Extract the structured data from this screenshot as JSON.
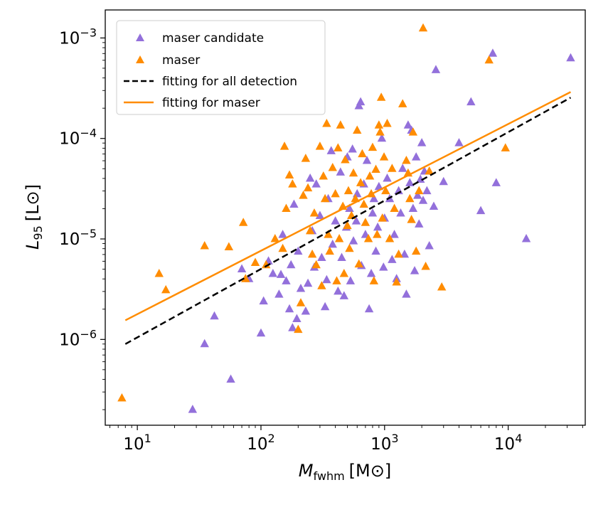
{
  "chart_data": {
    "type": "scatter",
    "title": "",
    "xlabel": {
      "main": "M",
      "sub": "fwhm",
      "unit": "[M⊙]"
    },
    "ylabel": {
      "main": "L",
      "sub": "95",
      "unit": "[L⊙]"
    },
    "xscale": "log",
    "yscale": "log",
    "xlim": [
      5.5,
      42000
    ],
    "ylim": [
      1.4e-07,
      0.0019
    ],
    "xticks": [
      {
        "value": 10,
        "base": "10",
        "exp": "1"
      },
      {
        "value": 100,
        "base": "10",
        "exp": "2"
      },
      {
        "value": 1000,
        "base": "10",
        "exp": "3"
      },
      {
        "value": 10000,
        "base": "10",
        "exp": "4"
      }
    ],
    "yticks": [
      {
        "value": 1e-06,
        "base": "10",
        "exp": "−6"
      },
      {
        "value": 1e-05,
        "base": "10",
        "exp": "−5"
      },
      {
        "value": 0.0001,
        "base": "10",
        "exp": "−4"
      },
      {
        "value": 0.001,
        "base": "10",
        "exp": "−3"
      }
    ],
    "grid": false,
    "legend": {
      "position": "top-left",
      "entries": [
        {
          "label": "maser candidate",
          "kind": "triangle",
          "color": "#9370DB"
        },
        {
          "label": "maser",
          "kind": "triangle",
          "color": "#FF8C00"
        },
        {
          "label": "fitting for all detection",
          "kind": "dashed-line",
          "color": "#000000"
        },
        {
          "label": "fitting for maser",
          "kind": "solid-line",
          "color": "#FF8C00"
        }
      ]
    },
    "series": [
      {
        "name": "maser candidate",
        "color": "#9370DB",
        "marker": "triangle",
        "points": [
          [
            28,
            2e-07
          ],
          [
            35,
            9e-07
          ],
          [
            42,
            1.7e-06
          ],
          [
            57,
            4e-07
          ],
          [
            70,
            5e-06
          ],
          [
            80,
            4e-06
          ],
          [
            100,
            1.15e-06
          ],
          [
            105,
            2.4e-06
          ],
          [
            115,
            6e-06
          ],
          [
            125,
            4.5e-06
          ],
          [
            140,
            2.8e-06
          ],
          [
            145,
            4.4e-06
          ],
          [
            150,
            1.1e-05
          ],
          [
            160,
            3.8e-06
          ],
          [
            170,
            2e-06
          ],
          [
            175,
            5.5e-06
          ],
          [
            180,
            1.3e-06
          ],
          [
            185,
            2.2e-05
          ],
          [
            195,
            1.6e-06
          ],
          [
            200,
            7.5e-06
          ],
          [
            210,
            3.2e-06
          ],
          [
            230,
            1.9e-06
          ],
          [
            240,
            3.6e-06
          ],
          [
            250,
            4e-05
          ],
          [
            260,
            1.2e-05
          ],
          [
            270,
            5.2e-06
          ],
          [
            280,
            3.5e-05
          ],
          [
            300,
            1.7e-05
          ],
          [
            310,
            6.5e-06
          ],
          [
            330,
            2.1e-06
          ],
          [
            340,
            3.9e-06
          ],
          [
            350,
            2.5e-05
          ],
          [
            370,
            7.5e-05
          ],
          [
            380,
            8.8e-06
          ],
          [
            400,
            1.5e-05
          ],
          [
            420,
            3e-06
          ],
          [
            440,
            4.6e-05
          ],
          [
            450,
            6.5e-06
          ],
          [
            470,
            2.7e-06
          ],
          [
            490,
            1.3e-05
          ],
          [
            500,
            6.5e-05
          ],
          [
            520,
            2e-05
          ],
          [
            530,
            3.8e-06
          ],
          [
            550,
            7.8e-05
          ],
          [
            560,
            9.5e-06
          ],
          [
            590,
            1.5e-05
          ],
          [
            600,
            2.8e-05
          ],
          [
            620,
            0.00021
          ],
          [
            640,
            0.00023
          ],
          [
            650,
            5.4e-06
          ],
          [
            680,
            3.5e-05
          ],
          [
            700,
            1.1e-05
          ],
          [
            720,
            6e-05
          ],
          [
            750,
            2e-06
          ],
          [
            780,
            4.5e-06
          ],
          [
            800,
            1.8e-05
          ],
          [
            820,
            2.5e-05
          ],
          [
            850,
            7.5e-06
          ],
          [
            880,
            1.3e-05
          ],
          [
            900,
            3.3e-05
          ],
          [
            950,
            0.0001
          ],
          [
            980,
            5.2e-06
          ],
          [
            1000,
            1.6e-05
          ],
          [
            1050,
            4e-05
          ],
          [
            1100,
            2.5e-05
          ],
          [
            1150,
            6.2e-06
          ],
          [
            1200,
            1.1e-05
          ],
          [
            1250,
            4e-06
          ],
          [
            1300,
            3e-05
          ],
          [
            1350,
            1.8e-05
          ],
          [
            1400,
            5e-05
          ],
          [
            1450,
            7e-06
          ],
          [
            1500,
            2.8e-06
          ],
          [
            1550,
            0.000135
          ],
          [
            1600,
            3.6e-05
          ],
          [
            1650,
            0.00012
          ],
          [
            1700,
            2e-05
          ],
          [
            1750,
            4.8e-06
          ],
          [
            1800,
            6.5e-05
          ],
          [
            1850,
            2.7e-05
          ],
          [
            1900,
            1.4e-05
          ],
          [
            1950,
            3.9e-05
          ],
          [
            2000,
            9e-05
          ],
          [
            2050,
            2.4e-05
          ],
          [
            2100,
            4.7e-05
          ],
          [
            2200,
            3e-05
          ],
          [
            2300,
            8.5e-06
          ],
          [
            2500,
            2.1e-05
          ],
          [
            2600,
            0.00048
          ],
          [
            3000,
            3.7e-05
          ],
          [
            4000,
            9e-05
          ],
          [
            5000,
            0.00023
          ],
          [
            6000,
            1.9e-05
          ],
          [
            7500,
            0.0007
          ],
          [
            8000,
            3.6e-05
          ],
          [
            14000,
            1e-05
          ],
          [
            32000,
            0.00063
          ]
        ]
      },
      {
        "name": "maser",
        "color": "#FF8C00",
        "marker": "triangle",
        "points": [
          [
            7.5,
            2.6e-07
          ],
          [
            15,
            4.5e-06
          ],
          [
            17,
            3.1e-06
          ],
          [
            35,
            8.5e-06
          ],
          [
            55,
            8.3e-06
          ],
          [
            72,
            1.45e-05
          ],
          [
            75,
            4e-06
          ],
          [
            90,
            5.8e-06
          ],
          [
            110,
            5.5e-06
          ],
          [
            130,
            1e-05
          ],
          [
            150,
            8e-06
          ],
          [
            155,
            8.3e-05
          ],
          [
            160,
            2e-05
          ],
          [
            170,
            4.3e-05
          ],
          [
            180,
            3.5e-05
          ],
          [
            200,
            1.25e-06
          ],
          [
            210,
            2.3e-06
          ],
          [
            220,
            2.7e-05
          ],
          [
            230,
            6.3e-05
          ],
          [
            240,
            3.2e-05
          ],
          [
            250,
            1.2e-05
          ],
          [
            260,
            7e-06
          ],
          [
            270,
            1.8e-05
          ],
          [
            280,
            5.5e-06
          ],
          [
            300,
            8.3e-05
          ],
          [
            310,
            3.4e-06
          ],
          [
            320,
            4.2e-05
          ],
          [
            330,
            2.5e-05
          ],
          [
            340,
            0.00014
          ],
          [
            350,
            1.1e-05
          ],
          [
            360,
            7.5e-06
          ],
          [
            380,
            5.1e-05
          ],
          [
            400,
            2.8e-05
          ],
          [
            410,
            3.8e-06
          ],
          [
            420,
            8e-05
          ],
          [
            430,
            1e-05
          ],
          [
            440,
            0.000135
          ],
          [
            460,
            2.1e-05
          ],
          [
            470,
            4.5e-06
          ],
          [
            480,
            6.1e-05
          ],
          [
            500,
            1.35e-05
          ],
          [
            510,
            3e-05
          ],
          [
            520,
            8e-06
          ],
          [
            540,
            1.7e-05
          ],
          [
            560,
            4.5e-05
          ],
          [
            580,
            2.5e-05
          ],
          [
            600,
            0.00012
          ],
          [
            620,
            5.6e-06
          ],
          [
            640,
            3.6e-05
          ],
          [
            660,
            7e-05
          ],
          [
            680,
            2.2e-05
          ],
          [
            700,
            1.45e-05
          ],
          [
            740,
            1e-05
          ],
          [
            760,
            4.2e-05
          ],
          [
            780,
            2.8e-05
          ],
          [
            800,
            8.1e-05
          ],
          [
            820,
            3.8e-06
          ],
          [
            850,
            4.9e-05
          ],
          [
            870,
            1.1e-05
          ],
          [
            900,
            0.000135
          ],
          [
            920,
            0.000115
          ],
          [
            940,
            0.000255
          ],
          [
            960,
            1.6e-05
          ],
          [
            990,
            6.5e-05
          ],
          [
            1020,
            3e-05
          ],
          [
            1050,
            0.00014
          ],
          [
            1100,
            1e-05
          ],
          [
            1150,
            5e-05
          ],
          [
            1200,
            2e-05
          ],
          [
            1250,
            3.7e-06
          ],
          [
            1300,
            7e-06
          ],
          [
            1400,
            0.00022
          ],
          [
            1500,
            6e-05
          ],
          [
            1550,
            4.5e-05
          ],
          [
            1600,
            2.5e-05
          ],
          [
            1650,
            1.55e-05
          ],
          [
            1700,
            0.000115
          ],
          [
            1800,
            7.5e-06
          ],
          [
            1900,
            3e-05
          ],
          [
            2050,
            0.00125
          ],
          [
            2150,
            5.3e-06
          ],
          [
            2300,
            4.7e-05
          ],
          [
            2900,
            3.3e-06
          ],
          [
            7000,
            0.0006
          ],
          [
            9500,
            8e-05
          ]
        ]
      },
      {
        "name": "fitting for all detection",
        "type": "line",
        "style": "dashed",
        "color": "#000000",
        "points": [
          [
            8,
            9e-07
          ],
          [
            32000,
            0.000255
          ]
        ]
      },
      {
        "name": "fitting for maser",
        "type": "line",
        "style": "solid",
        "color": "#FF8C00",
        "points": [
          [
            8,
            1.55e-06
          ],
          [
            32000,
            0.00029
          ]
        ]
      }
    ]
  }
}
